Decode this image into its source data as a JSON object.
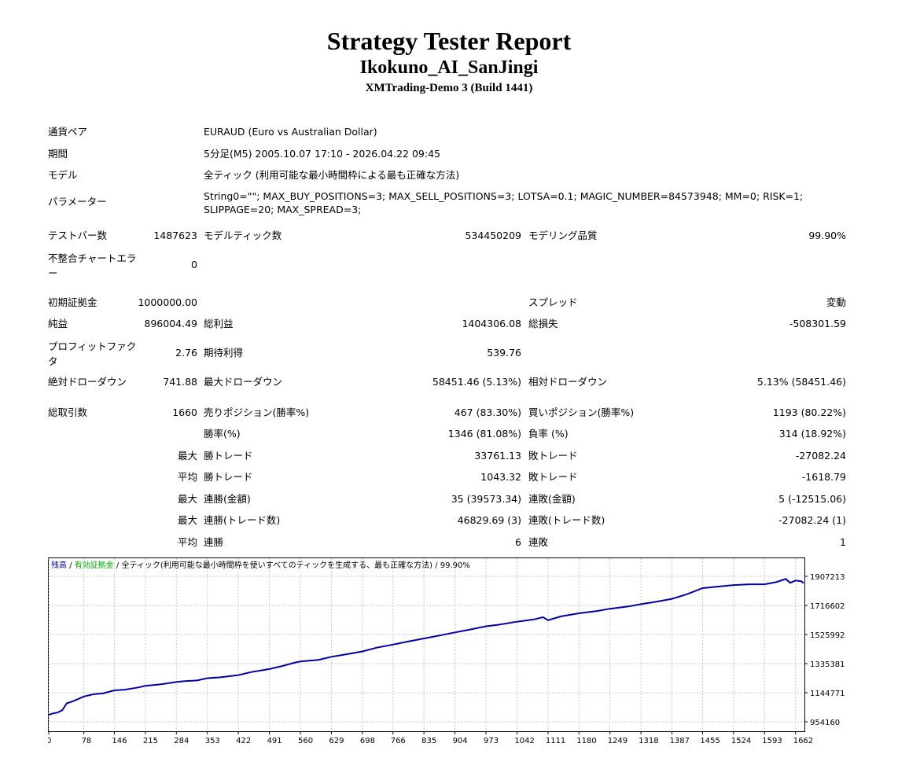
{
  "header": {
    "title": "Strategy Tester Report",
    "expert": "Ikokuno_AI_SanJingi",
    "server": "XMTrading-Demo 3 (Build 1441)"
  },
  "info": {
    "symbol_label": "通貨ペア",
    "symbol_value": "EURAUD (Euro vs Australian Dollar)",
    "period_label": "期間",
    "period_value": "5分足(M5) 2005.10.07 17:10 - 2026.04.22 09:45",
    "model_label": "モデル",
    "model_value": "全ティック (利用可能な最小時間枠による最も正確な方法)",
    "params_label": "パラメーター",
    "params_value": "String0=\"\"; MAX_BUY_POSITIONS=3; MAX_SELL_POSITIONS=3; LOTSA=0.1; MAGIC_NUMBER=84573948; MM=0; RISK=1; SLIPPAGE=20; MAX_SPREAD=3;"
  },
  "stats": {
    "bars_label": "テストバー数",
    "bars_value": "1487623",
    "ticks_label": "モデルティック数",
    "ticks_value": "534450209",
    "quality_label": "モデリング品質",
    "quality_value": "99.90%",
    "mismatch_label": "不整合チャートエラー",
    "mismatch_value": "0",
    "deposit_label": "初期証拠金",
    "deposit_value": "1000000.00",
    "spread_label": "スプレッド",
    "spread_value": "変動",
    "net_label": "純益",
    "net_value": "896004.49",
    "gross_profit_label": "総利益",
    "gross_profit_value": "1404306.08",
    "gross_loss_label": "総損失",
    "gross_loss_value": "-508301.59",
    "pf_label": "プロフィットファクタ",
    "pf_value": "2.76",
    "payoff_label": "期待利得",
    "payoff_value": "539.76",
    "abs_dd_label": "絶対ドローダウン",
    "abs_dd_value": "741.88",
    "max_dd_label": "最大ドローダウン",
    "max_dd_value": "58451.46 (5.13%)",
    "rel_dd_label": "相対ドローダウン",
    "rel_dd_value": "5.13% (58451.46)",
    "trades_label": "総取引数",
    "trades_value": "1660",
    "short_label": "売りポジション(勝率%)",
    "short_value": "467 (83.30%)",
    "long_label": "買いポジション(勝率%)",
    "long_value": "1193 (80.22%)",
    "win_label": "勝率(%)",
    "win_value": "1346 (81.08%)",
    "loss_label": "負率 (%)",
    "loss_value": "314 (18.92%)",
    "max_word": "最大",
    "avg_word": "平均",
    "win_trade_label": "勝トレード",
    "max_win_value": "33761.13",
    "loss_trade_label": "敗トレード",
    "max_loss_value": "-27082.24",
    "avg_win_value": "1043.32",
    "avg_loss_value": "-1618.79",
    "cons_win_amt_label": "連勝(金額)",
    "cons_win_amt_value": "35 (39573.34)",
    "cons_loss_amt_label": "連敗(金額)",
    "cons_loss_amt_value": "5 (-12515.06)",
    "cons_win_cnt_label": "連勝(トレード数)",
    "cons_win_cnt_value": "46829.69 (3)",
    "cons_loss_cnt_label": "連敗(トレード数)",
    "cons_loss_cnt_value": "-27082.24 (1)",
    "avg_cons_win_label": "連勝",
    "avg_cons_win_value": "6",
    "avg_cons_loss_label": "連敗",
    "avg_cons_loss_value": "1"
  },
  "chart_data": {
    "type": "line",
    "legend_balance": "残高",
    "legend_equity": "有効証拠金",
    "legend_rest": "全ティック(利用可能な最小時間枠を使いすべてのティックを生成する、最も正確な方法)",
    "legend_quality": "99.90%",
    "legend_sep": " / ",
    "x_ticks": [
      "0",
      "78",
      "146",
      "215",
      "284",
      "353",
      "422",
      "491",
      "560",
      "629",
      "698",
      "766",
      "835",
      "904",
      "973",
      "1042",
      "1111",
      "1180",
      "1249",
      "1318",
      "1387",
      "1455",
      "1524",
      "1593",
      "1662"
    ],
    "y_ticks": [
      "1907213",
      "1716602",
      "1525992",
      "1335381",
      "1144771",
      "954160"
    ],
    "ylim": [
      954160,
      1907213
    ],
    "xlim": [
      0,
      1680
    ],
    "balance_color": "#0000aa",
    "points": [
      [
        0,
        1000000
      ],
      [
        10,
        1010000
      ],
      [
        20,
        1015000
      ],
      [
        30,
        1030000
      ],
      [
        40,
        1075000
      ],
      [
        55,
        1090000
      ],
      [
        78,
        1120000
      ],
      [
        100,
        1135000
      ],
      [
        120,
        1140000
      ],
      [
        146,
        1160000
      ],
      [
        170,
        1165000
      ],
      [
        200,
        1180000
      ],
      [
        215,
        1190000
      ],
      [
        250,
        1200000
      ],
      [
        284,
        1215000
      ],
      [
        300,
        1220000
      ],
      [
        330,
        1225000
      ],
      [
        353,
        1240000
      ],
      [
        380,
        1245000
      ],
      [
        422,
        1260000
      ],
      [
        450,
        1280000
      ],
      [
        491,
        1300000
      ],
      [
        520,
        1320000
      ],
      [
        545,
        1340000
      ],
      [
        560,
        1350000
      ],
      [
        600,
        1360000
      ],
      [
        629,
        1380000
      ],
      [
        660,
        1395000
      ],
      [
        698,
        1415000
      ],
      [
        730,
        1440000
      ],
      [
        766,
        1460000
      ],
      [
        800,
        1480000
      ],
      [
        835,
        1500000
      ],
      [
        870,
        1520000
      ],
      [
        904,
        1540000
      ],
      [
        940,
        1560000
      ],
      [
        973,
        1580000
      ],
      [
        1000,
        1590000
      ],
      [
        1042,
        1610000
      ],
      [
        1080,
        1625000
      ],
      [
        1100,
        1640000
      ],
      [
        1111,
        1620000
      ],
      [
        1140,
        1645000
      ],
      [
        1180,
        1665000
      ],
      [
        1220,
        1680000
      ],
      [
        1249,
        1695000
      ],
      [
        1290,
        1710000
      ],
      [
        1318,
        1725000
      ],
      [
        1350,
        1740000
      ],
      [
        1387,
        1760000
      ],
      [
        1420,
        1790000
      ],
      [
        1455,
        1830000
      ],
      [
        1490,
        1840000
      ],
      [
        1524,
        1850000
      ],
      [
        1560,
        1855000
      ],
      [
        1593,
        1855000
      ],
      [
        1620,
        1870000
      ],
      [
        1640,
        1890000
      ],
      [
        1650,
        1865000
      ],
      [
        1662,
        1880000
      ],
      [
        1675,
        1875000
      ],
      [
        1680,
        1862000
      ]
    ]
  }
}
